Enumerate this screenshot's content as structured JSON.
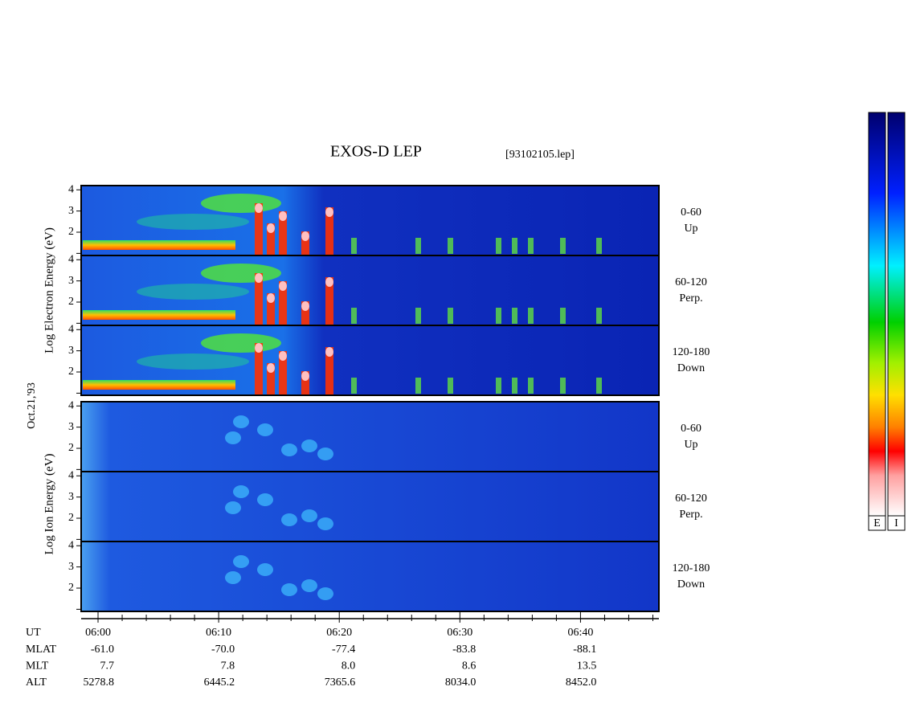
{
  "title": "EXOS-D LEP",
  "file": "[93102105.lep]",
  "date": "Oct.21,'93",
  "groups": [
    {
      "axis_label": "Log Electron Energy (eV)",
      "panels": [
        {
          "pitch": "0-60",
          "direction": "Up"
        },
        {
          "pitch": "60-120",
          "direction": "Perp."
        },
        {
          "pitch": "120-180",
          "direction": "Down"
        }
      ]
    },
    {
      "axis_label": "Log Ion Energy (eV)",
      "panels": [
        {
          "pitch": "0-60",
          "direction": "Up"
        },
        {
          "pitch": "60-120",
          "direction": "Perp."
        },
        {
          "pitch": "120-180",
          "direction": "Down"
        }
      ]
    }
  ],
  "ylim": [
    0.9,
    4.2
  ],
  "yticks": [
    2,
    3,
    4
  ],
  "unlabeled_yticks": [
    1
  ],
  "xlim": [
    -1.4,
    46.5
  ],
  "xticks": [
    {
      "value": 0,
      "label": "06:00"
    },
    {
      "value": 10,
      "label": "06:10"
    },
    {
      "value": 20,
      "label": "06:20"
    },
    {
      "value": 30,
      "label": "06:30"
    },
    {
      "value": 40,
      "label": "06:40"
    }
  ],
  "minor_xticks": [
    2,
    4,
    6,
    8,
    12,
    14,
    16,
    18,
    22,
    24,
    26,
    28,
    32,
    34,
    36,
    38,
    42,
    44,
    46
  ],
  "ut_label": "UT",
  "table": {
    "rows": [
      [
        "MLAT",
        "-61.0",
        "-70.0",
        "-77.4",
        "-83.8",
        "-88.1"
      ],
      [
        "MLT",
        "7.7",
        "7.8",
        "8.0",
        "8.6",
        "13.5"
      ],
      [
        "ALT",
        "5278.8",
        "6445.2",
        "7365.6",
        "8034.0",
        "8452.0"
      ]
    ]
  },
  "colorbars": [
    "E",
    "I"
  ]
}
